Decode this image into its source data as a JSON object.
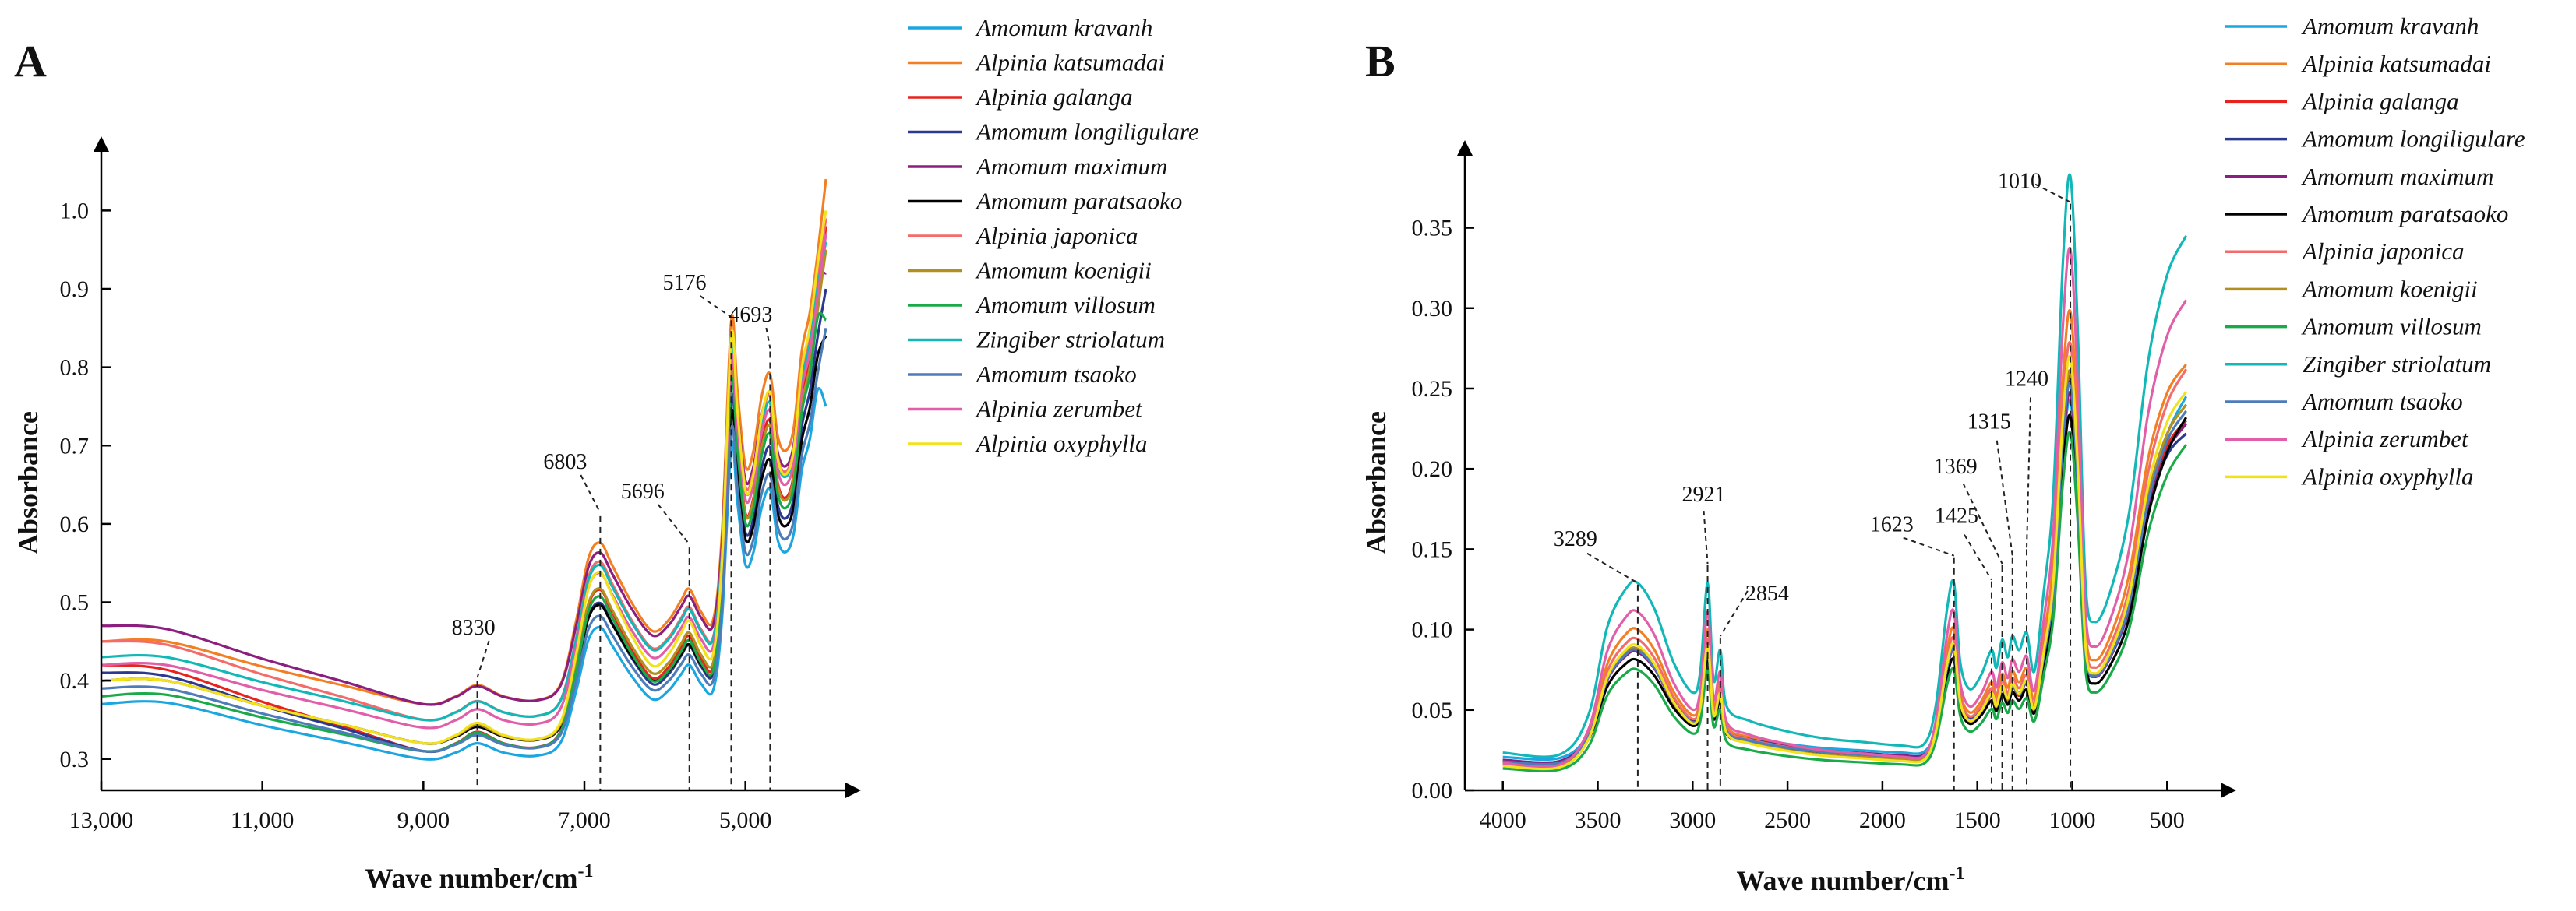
{
  "chart_data": [
    {
      "type": "line",
      "panel_label": "A",
      "xlabel": "Wave number/cm",
      "xlabel_sup": "-1",
      "ylabel": "Absorbance",
      "xlim": [
        13000,
        4000
      ],
      "ylim": [
        0.26,
        1.06
      ],
      "x_ticks": [
        13000,
        11000,
        9000,
        7000,
        5000
      ],
      "x_tick_labels": [
        "13,000",
        "11,000",
        "9,000",
        "7,000",
        "5,000"
      ],
      "y_ticks": [
        0.3,
        0.4,
        0.5,
        0.6,
        0.7,
        0.8,
        0.9,
        1.0
      ],
      "y_tick_labels": [
        "0.3",
        "0.4",
        "0.5",
        "0.6",
        "0.7",
        "0.8",
        "0.9",
        "1.0"
      ],
      "annotations": [
        {
          "label": "8330",
          "x": 8330,
          "y": 0.4
        },
        {
          "label": "6803",
          "x": 6803,
          "y": 0.61
        },
        {
          "label": "5696",
          "x": 5696,
          "y": 0.57
        },
        {
          "label": "5176",
          "x": 5176,
          "y": 0.86
        },
        {
          "label": "4693",
          "x": 4693,
          "y": 0.82
        }
      ],
      "spectrum_x": [
        13000,
        12200,
        11000,
        10000,
        9000,
        8600,
        8330,
        8000,
        7600,
        7300,
        7100,
        6950,
        6803,
        6650,
        6400,
        6150,
        5950,
        5800,
        5696,
        5550,
        5400,
        5290,
        5176,
        5100,
        5000,
        4900,
        4800,
        4693,
        4600,
        4500,
        4400,
        4300,
        4200,
        4100,
        4000
      ],
      "spectrum_shape": [
        0.0,
        0.04,
        0.02,
        0.01,
        0.0,
        0.02,
        0.05,
        0.02,
        0.01,
        0.05,
        0.22,
        0.38,
        0.42,
        0.36,
        0.26,
        0.19,
        0.22,
        0.27,
        0.3,
        0.24,
        0.22,
        0.45,
        1.0,
        0.82,
        0.62,
        0.66,
        0.8,
        0.86,
        0.7,
        0.66,
        0.72,
        0.92,
        1.02,
        1.18,
        1.32
      ],
      "series": [
        {
          "name": "Amomum kravanh",
          "color": "#1CA6E0",
          "y_start": 0.37,
          "y_base": 0.3,
          "peak_5176": 0.7,
          "end": 0.75
        },
        {
          "name": "Alpinia katsumadai",
          "color": "#F27F24",
          "y_start": 0.45,
          "y_base": 0.37,
          "peak_5176": 0.86,
          "end": 1.04
        },
        {
          "name": "Alpinia galanga",
          "color": "#E8231E",
          "y_start": 0.42,
          "y_base": 0.31,
          "peak_5176": 0.8,
          "end": 0.98
        },
        {
          "name": "Amomum longiligulare",
          "color": "#2B3990",
          "y_start": 0.41,
          "y_base": 0.31,
          "peak_5176": 0.76,
          "end": 0.9
        },
        {
          "name": "Amomum maximum",
          "color": "#8B1E7E",
          "y_start": 0.47,
          "y_base": 0.37,
          "peak_5176": 0.83,
          "end": 0.92
        },
        {
          "name": "Amomum paratsaoko",
          "color": "#000000",
          "y_start": 0.4,
          "y_base": 0.32,
          "peak_5176": 0.74,
          "end": 0.84
        },
        {
          "name": "Alpinia japonica",
          "color": "#F36B6B",
          "y_start": 0.45,
          "y_base": 0.35,
          "peak_5176": 0.83,
          "end": 0.99
        },
        {
          "name": "Amomum koenigii",
          "color": "#B1901F",
          "y_start": 0.4,
          "y_base": 0.32,
          "peak_5176": 0.79,
          "end": 0.95
        },
        {
          "name": "Amomum villosum",
          "color": "#1BAA4A",
          "y_start": 0.38,
          "y_base": 0.31,
          "peak_5176": 0.78,
          "end": 0.86
        },
        {
          "name": "Zingiber striolatum",
          "color": "#12B7B7",
          "y_start": 0.43,
          "y_base": 0.35,
          "peak_5176": 0.82,
          "end": 0.96
        },
        {
          "name": "Amomum tsaoko",
          "color": "#4D7CB8",
          "y_start": 0.39,
          "y_base": 0.31,
          "peak_5176": 0.72,
          "end": 0.85
        },
        {
          "name": "Alpinia zerumbet",
          "color": "#E05FA8",
          "y_start": 0.42,
          "y_base": 0.34,
          "peak_5176": 0.81,
          "end": 0.97
        },
        {
          "name": "Alpinia oxyphylla",
          "color": "#F2E21C",
          "y_start": 0.4,
          "y_base": 0.32,
          "peak_5176": 0.84,
          "end": 1.0
        }
      ]
    },
    {
      "type": "line",
      "panel_label": "B",
      "xlabel": "Wave number/cm",
      "xlabel_sup": "-1",
      "ylabel": "Absorbance",
      "xlim": [
        4200,
        300
      ],
      "ylim": [
        0.0,
        0.39
      ],
      "x_ticks": [
        4000,
        3500,
        3000,
        2500,
        2000,
        1500,
        1000,
        500
      ],
      "x_tick_labels": [
        "4000",
        "3500",
        "3000",
        "2500",
        "2000",
        "1500",
        "1000",
        "500"
      ],
      "y_ticks": [
        0.0,
        0.05,
        0.1,
        0.15,
        0.2,
        0.25,
        0.3,
        0.35
      ],
      "y_tick_labels": [
        "0.00",
        "0.05",
        "0.10",
        "0.15",
        "0.20",
        "0.25",
        "0.30",
        "0.35"
      ],
      "annotations": [
        {
          "label": "3289",
          "x": 3289,
          "y": 0.128
        },
        {
          "label": "2921",
          "x": 2921,
          "y": 0.14
        },
        {
          "label": "2854",
          "x": 2854,
          "y": 0.095
        },
        {
          "label": "1623",
          "x": 1623,
          "y": 0.145
        },
        {
          "label": "1425",
          "x": 1425,
          "y": 0.13
        },
        {
          "label": "1369",
          "x": 1369,
          "y": 0.14
        },
        {
          "label": "1315",
          "x": 1315,
          "y": 0.145
        },
        {
          "label": "1240",
          "x": 1240,
          "y": 0.15
        },
        {
          "label": "1010",
          "x": 1010,
          "y": 0.365
        }
      ],
      "spectrum_x": [
        4000,
        3700,
        3550,
        3450,
        3350,
        3289,
        3200,
        3100,
        3000,
        2960,
        2921,
        2890,
        2854,
        2820,
        2700,
        2500,
        2300,
        2100,
        1900,
        1780,
        1720,
        1660,
        1623,
        1590,
        1540,
        1480,
        1425,
        1400,
        1369,
        1340,
        1315,
        1280,
        1240,
        1200,
        1150,
        1100,
        1050,
        1010,
        970,
        930,
        880,
        800,
        700,
        600,
        500,
        400
      ],
      "spectrum_shape": [
        0.04,
        0.03,
        0.25,
        0.75,
        0.97,
        1.0,
        0.85,
        0.55,
        0.38,
        0.5,
        1.0,
        0.45,
        0.62,
        0.3,
        0.22,
        0.16,
        0.12,
        0.1,
        0.08,
        0.09,
        0.3,
        0.85,
        1.0,
        0.55,
        0.4,
        0.48,
        0.62,
        0.52,
        0.68,
        0.58,
        0.7,
        0.62,
        0.72,
        0.5,
        0.95,
        1.5,
        2.8,
        3.3,
        2.4,
        1.0,
        0.78,
        0.95,
        1.4,
        1.9,
        2.3,
        2.55
      ],
      "series": [
        {
          "name": "Amomum kravanh",
          "color": "#1CA6E0",
          "base": 0.018,
          "scale": 0.068,
          "end": 0.245
        },
        {
          "name": "Alpinia katsumadai",
          "color": "#F27F24",
          "base": 0.014,
          "scale": 0.086,
          "end": 0.265
        },
        {
          "name": "Alpinia galanga",
          "color": "#E8231E",
          "base": 0.013,
          "scale": 0.074,
          "end": 0.23
        },
        {
          "name": "Amomum longiligulare",
          "color": "#2B3990",
          "base": 0.016,
          "scale": 0.072,
          "end": 0.222
        },
        {
          "name": "Amomum maximum",
          "color": "#8B1E7E",
          "base": 0.016,
          "scale": 0.07,
          "end": 0.228
        },
        {
          "name": "Amomum paratsaoko",
          "color": "#000000",
          "base": 0.015,
          "scale": 0.066,
          "end": 0.232
        },
        {
          "name": "Alpinia japonica",
          "color": "#F36B6B",
          "base": 0.014,
          "scale": 0.08,
          "end": 0.262
        },
        {
          "name": "Amomum koenigii",
          "color": "#B1901F",
          "base": 0.013,
          "scale": 0.075,
          "end": 0.24
        },
        {
          "name": "Amomum villosum",
          "color": "#1BAA4A",
          "base": 0.011,
          "scale": 0.064,
          "end": 0.215
        },
        {
          "name": "Zingiber striolatum",
          "color": "#12B7B7",
          "base": 0.019,
          "scale": 0.11,
          "end": 0.345
        },
        {
          "name": "Amomum tsaoko",
          "color": "#4D7CB8",
          "base": 0.015,
          "scale": 0.072,
          "end": 0.236
        },
        {
          "name": "Alpinia zerumbet",
          "color": "#E05FA8",
          "base": 0.013,
          "scale": 0.098,
          "end": 0.305
        },
        {
          "name": "Alpinia oxyphylla",
          "color": "#F2E21C",
          "base": 0.012,
          "scale": 0.078,
          "end": 0.248
        }
      ]
    }
  ]
}
